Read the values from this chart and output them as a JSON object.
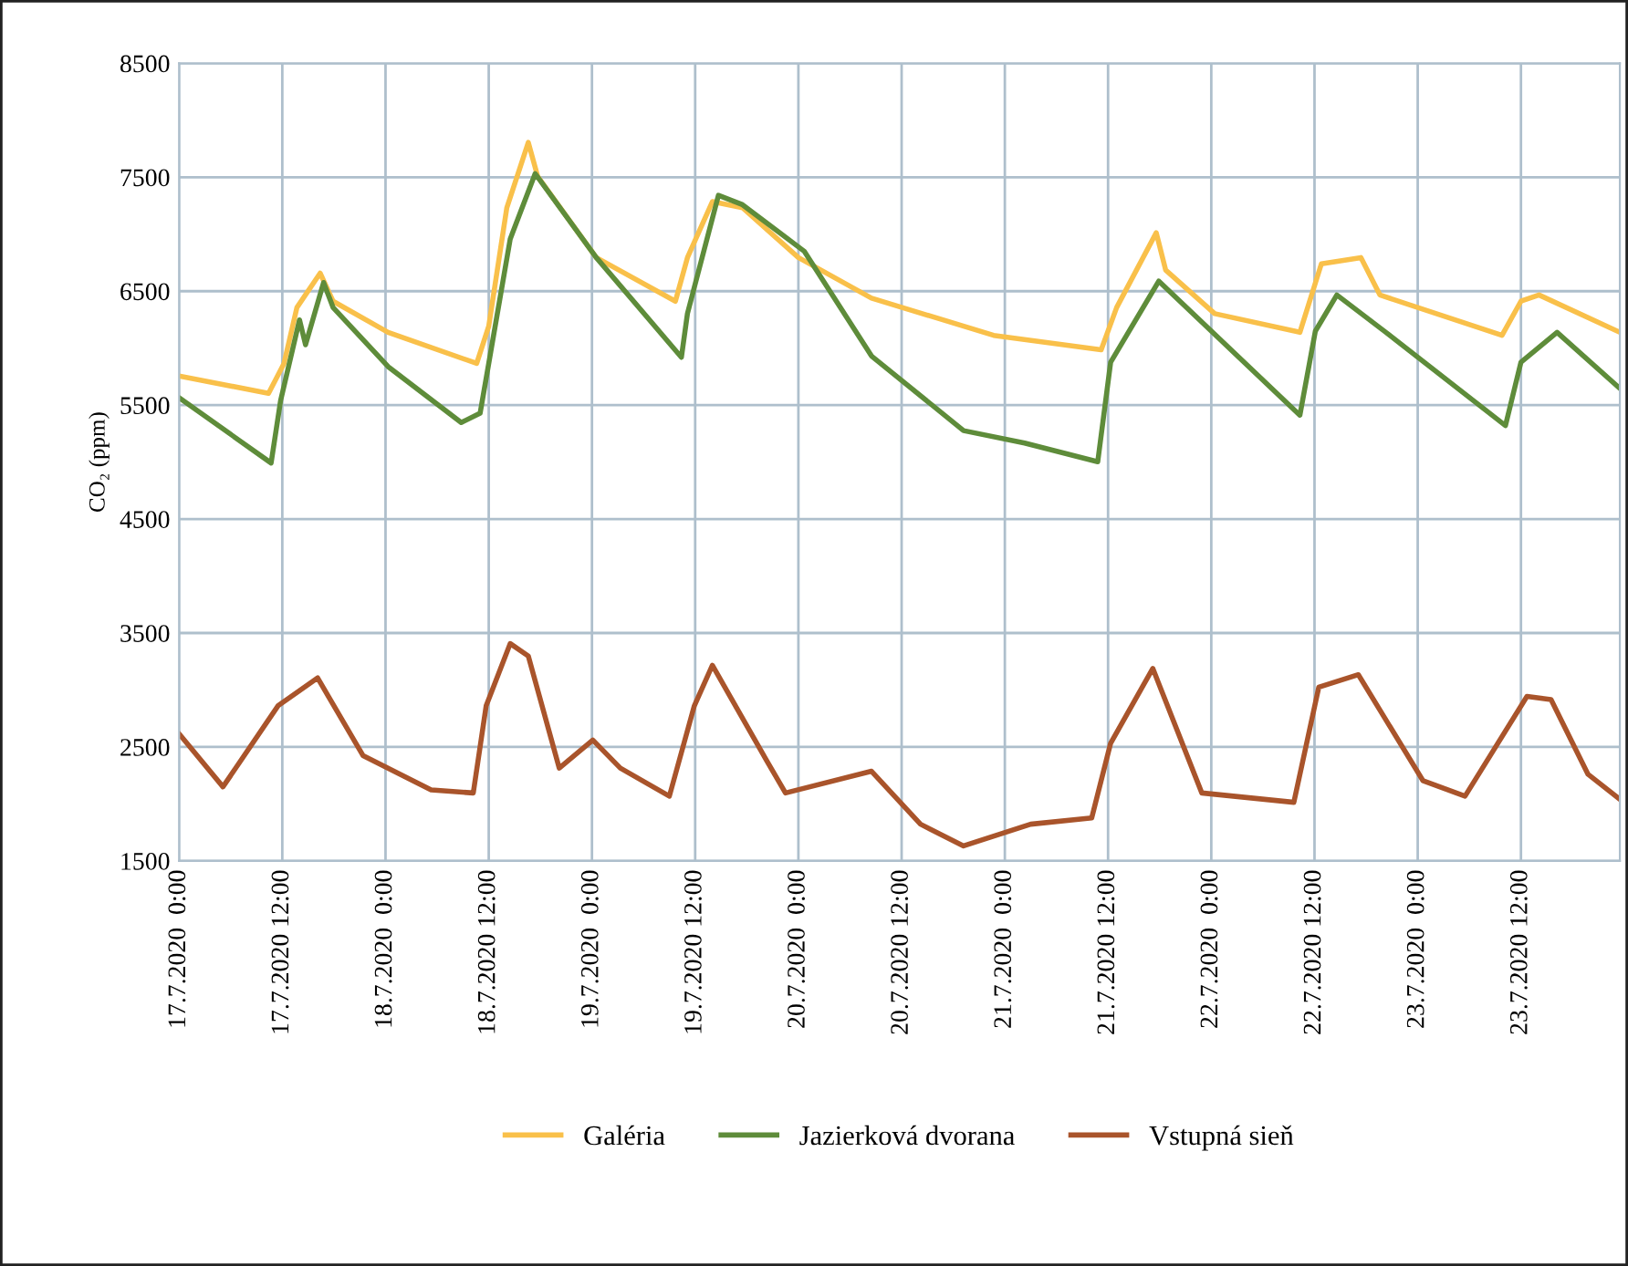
{
  "chart_data": {
    "type": "line",
    "ylabel": "CO₂ (ppm)",
    "xlim": [
      "2020-07-17T00:00",
      "2020-07-23T23:30"
    ],
    "ylim": [
      1500,
      8500
    ],
    "yticks": [
      1500,
      2500,
      3500,
      4500,
      5500,
      6500,
      7500,
      8500
    ],
    "xticks": [
      {
        "value": "2020-07-17T00:00",
        "label": "17.7.2020  0:00"
      },
      {
        "value": "2020-07-17T12:00",
        "label": "17.7.2020 12:00"
      },
      {
        "value": "2020-07-18T00:00",
        "label": "18.7.2020  0:00"
      },
      {
        "value": "2020-07-18T12:00",
        "label": "18.7.2020 12:00"
      },
      {
        "value": "2020-07-19T00:00",
        "label": "19.7.2020  0:00"
      },
      {
        "value": "2020-07-19T12:00",
        "label": "19.7.2020 12:00"
      },
      {
        "value": "2020-07-20T00:00",
        "label": "20.7.2020  0:00"
      },
      {
        "value": "2020-07-20T12:00",
        "label": "20.7.2020 12:00"
      },
      {
        "value": "2020-07-21T00:00",
        "label": "21.7.2020  0:00"
      },
      {
        "value": "2020-07-21T12:00",
        "label": "21.7.2020 12:00"
      },
      {
        "value": "2020-07-22T00:00",
        "label": "22.7.2020  0:00"
      },
      {
        "value": "2020-07-22T12:00",
        "label": "22.7.2020 12:00"
      },
      {
        "value": "2020-07-23T00:00",
        "label": "23.7.2020  0:00"
      },
      {
        "value": "2020-07-23T12:00",
        "label": "23.7.2020 12:00"
      }
    ],
    "grid": true,
    "legend": "bottom",
    "marker": "none",
    "line_style": "solid",
    "series": [
      {
        "name": "Galéria",
        "color": "#f9c04a",
        "x": [
          "2020-07-17T00:00",
          "2020-07-17T10:24",
          "2020-07-17T12:12",
          "2020-07-17T13:42",
          "2020-07-17T16:24",
          "2020-07-17T17:54",
          "2020-07-18T00:18",
          "2020-07-18T10:36",
          "2020-07-18T12:00",
          "2020-07-18T14:06",
          "2020-07-18T16:36",
          "2020-07-18T17:42",
          "2020-07-19T00:30",
          "2020-07-19T09:42",
          "2020-07-19T11:06",
          "2020-07-19T14:00",
          "2020-07-19T17:30",
          "2020-07-20T00:00",
          "2020-07-20T08:30",
          "2020-07-20T22:42",
          "2020-07-21T11:12",
          "2020-07-21T13:00",
          "2020-07-21T17:36",
          "2020-07-21T18:42",
          "2020-07-22T00:24",
          "2020-07-22T10:18",
          "2020-07-22T12:48",
          "2020-07-22T17:24",
          "2020-07-22T19:36",
          "2020-07-23T09:48",
          "2020-07-23T12:00",
          "2020-07-23T14:06",
          "2020-07-23T23:30"
        ],
        "values": [
          5756,
          5603,
          5866,
          6357,
          6658,
          6412,
          6139,
          5866,
          6193,
          7232,
          7805,
          7505,
          6795,
          6412,
          6795,
          7286,
          7232,
          6795,
          6439,
          6112,
          5986,
          6357,
          7013,
          6685,
          6303,
          6139,
          6740,
          6795,
          6467,
          6112,
          6412,
          6467,
          6139
        ]
      },
      {
        "name": "Jazierková dvorana",
        "color": "#5e8c3a",
        "x": [
          "2020-07-17T00:00",
          "2020-07-17T10:42",
          "2020-07-17T11:48",
          "2020-07-17T14:00",
          "2020-07-17T14:42",
          "2020-07-17T16:48",
          "2020-07-17T17:54",
          "2020-07-18T00:18",
          "2020-07-18T08:48",
          "2020-07-18T11:00",
          "2020-07-18T12:00",
          "2020-07-18T14:30",
          "2020-07-18T17:24",
          "2020-07-19T00:30",
          "2020-07-19T10:24",
          "2020-07-19T11:06",
          "2020-07-19T14:42",
          "2020-07-19T17:30",
          "2020-07-20T00:42",
          "2020-07-20T08:30",
          "2020-07-20T19:12",
          "2020-07-21T02:18",
          "2020-07-21T10:48",
          "2020-07-21T12:18",
          "2020-07-21T17:54",
          "2020-07-22T10:18",
          "2020-07-22T12:06",
          "2020-07-22T14:36",
          "2020-07-22T20:18",
          "2020-07-23T10:12",
          "2020-07-23T12:00",
          "2020-07-23T16:12",
          "2020-07-23T23:30"
        ],
        "values": [
          5565,
          4992,
          5538,
          6248,
          6030,
          6576,
          6357,
          5838,
          5347,
          5429,
          5866,
          6959,
          7532,
          6795,
          5920,
          6303,
          7341,
          7259,
          6849,
          5931,
          5276,
          5167,
          5003,
          5877,
          6588,
          5412,
          6150,
          6467,
          6139,
          5320,
          5877,
          6139,
          5647
        ]
      },
      {
        "name": "Vstupná sieň",
        "color": "#a9542b",
        "x": [
          "2020-07-17T00:00",
          "2020-07-17T05:06",
          "2020-07-17T11:30",
          "2020-07-17T16:06",
          "2020-07-17T21:24",
          "2020-07-18T05:18",
          "2020-07-18T10:12",
          "2020-07-18T11:42",
          "2020-07-18T14:30",
          "2020-07-18T16:36",
          "2020-07-18T20:12",
          "2020-07-19T00:06",
          "2020-07-19T03:18",
          "2020-07-19T09:00",
          "2020-07-19T11:54",
          "2020-07-19T14:00",
          "2020-07-19T20:24",
          "2020-07-19T22:30",
          "2020-07-20T08:30",
          "2020-07-20T14:12",
          "2020-07-20T19:12",
          "2020-07-21T03:00",
          "2020-07-21T10:06",
          "2020-07-21T12:18",
          "2020-07-21T17:12",
          "2020-07-21T22:54",
          "2020-07-22T09:36",
          "2020-07-22T12:30",
          "2020-07-22T17:06",
          "2020-07-23T00:36",
          "2020-07-23T05:30",
          "2020-07-23T12:42",
          "2020-07-23T15:30",
          "2020-07-23T19:48",
          "2020-07-23T23:30"
        ],
        "values": [
          2615,
          2150,
          2861,
          3106,
          2423,
          2123,
          2096,
          2861,
          3407,
          3298,
          2314,
          2560,
          2314,
          2068,
          2861,
          3216,
          2369,
          2096,
          2287,
          1822,
          1631,
          1822,
          1877,
          2533,
          3189,
          2096,
          2014,
          3025,
          3134,
          2205,
          2068,
          2943,
          2916,
          2260,
          2041
        ]
      }
    ]
  }
}
